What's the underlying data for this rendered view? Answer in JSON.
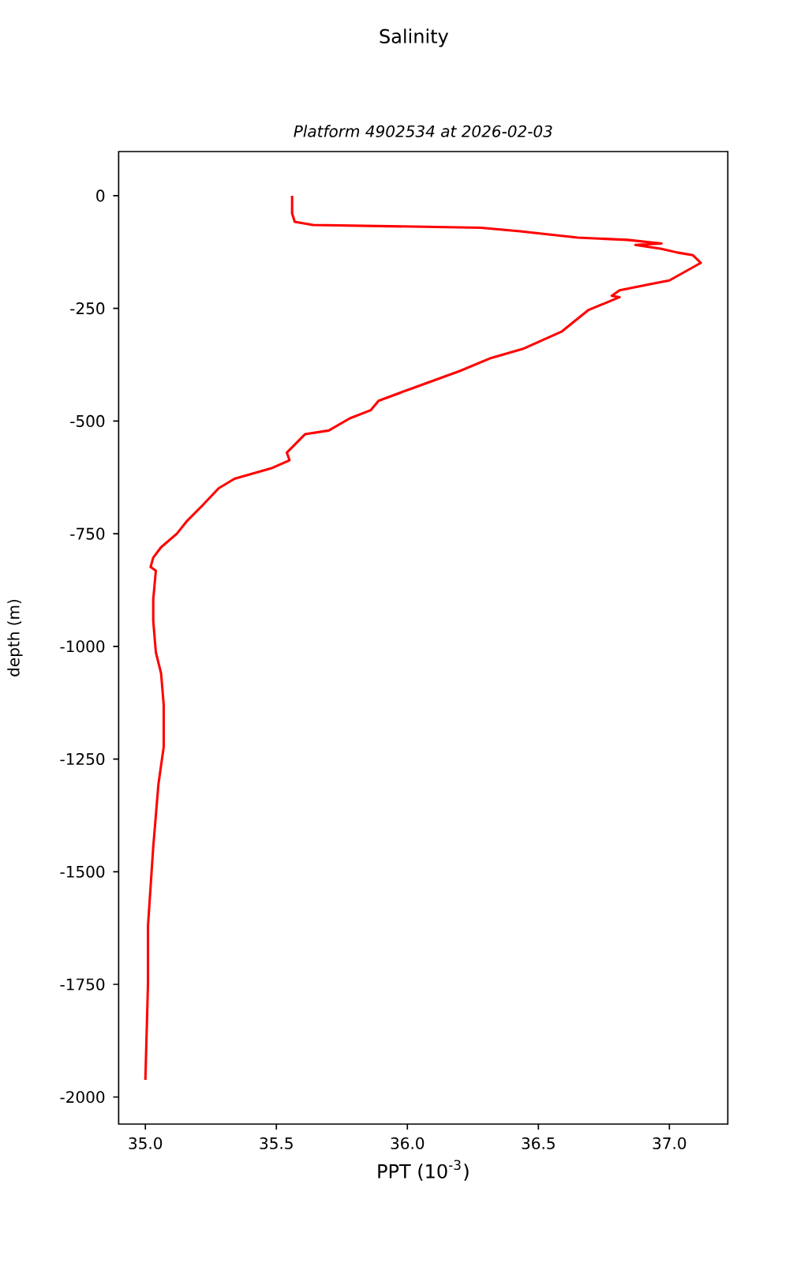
{
  "chart_data": {
    "type": "line",
    "title": "Salinity",
    "subtitle": "Platform 4902534 at 2026-02-03",
    "xlabel": "PPT (10$^{-3}$)",
    "ylabel": "depth (m)",
    "xlim": [
      34.898,
      37.223
    ],
    "ylim": [
      -2060,
      98
    ],
    "xticks": [
      {
        "value": 35,
        "label": "35.0"
      },
      35.5,
      {
        "value": 36,
        "label": "36.0"
      },
      36.5,
      {
        "value": 37,
        "label": "37.0"
      }
    ],
    "yticks": [
      0,
      -250,
      -500,
      -750,
      -1000,
      -1250,
      -1500,
      -1750,
      -2000
    ],
    "marker": "none",
    "line_style": "solid",
    "series": [
      {
        "color": "#ff0000",
        "x": [
          35.56,
          35.56,
          35.57,
          35.64,
          36.28,
          36.43,
          36.65,
          36.84,
          36.97,
          36.87,
          36.97,
          37.03,
          37.09,
          37.12,
          37.0,
          36.93,
          36.81,
          36.78,
          36.81,
          36.69,
          36.59,
          36.44,
          36.32,
          36.2,
          36.02,
          35.89,
          35.86,
          35.78,
          35.7,
          35.61,
          35.54,
          35.55,
          35.48,
          35.34,
          35.28,
          35.22,
          35.16,
          35.12,
          35.06,
          35.03,
          35.02,
          35.04,
          35.03,
          35.03,
          35.04,
          35.06,
          35.07,
          35.07,
          35.05,
          35.03,
          35.01,
          35.01,
          35.0
        ],
        "values": [
          0,
          -39,
          -58,
          -65,
          -71,
          -79,
          -93,
          -98,
          -106,
          -109,
          -118,
          -126,
          -132,
          -149,
          -188,
          -196,
          -210,
          -222,
          -225,
          -254,
          -301,
          -340,
          -360,
          -389,
          -427,
          -455,
          -476,
          -494,
          -521,
          -529,
          -570,
          -587,
          -605,
          -628,
          -649,
          -686,
          -721,
          -750,
          -780,
          -803,
          -824,
          -832,
          -896,
          -943,
          -1013,
          -1060,
          -1130,
          -1223,
          -1305,
          -1445,
          -1620,
          -1748,
          -1962
        ]
      }
    ]
  }
}
